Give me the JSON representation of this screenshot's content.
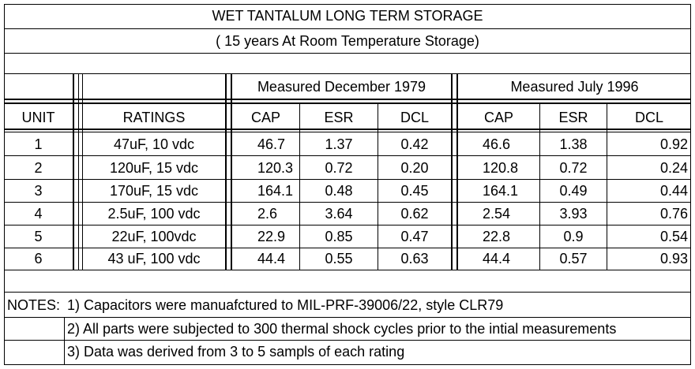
{
  "title": "WET TANTALUM LONG TERM STORAGE",
  "subtitle": "( 15 years At Room Temperature Storage)",
  "group_headers": {
    "first": "Measured December 1979",
    "second": "Measured July 1996"
  },
  "columns": {
    "unit": "UNIT",
    "ratings": "RATINGS",
    "cap1": "CAP",
    "esr1": "ESR",
    "dcl1": "DCL",
    "cap2": "CAP",
    "esr2": "ESR",
    "dcl2": "DCL"
  },
  "rows": [
    {
      "unit": "1",
      "rating": "47uF, 10 vdc",
      "cap1": "46.7",
      "esr1": "1.37",
      "dcl1": "0.42",
      "cap2": "46.6",
      "esr2": "1.38",
      "dcl2": "0.92"
    },
    {
      "unit": "2",
      "rating": "120uF, 15 vdc",
      "cap1": "120.3",
      "esr1": "0.72",
      "dcl1": "0.20",
      "cap2": "120.8",
      "esr2": "0.72",
      "dcl2": "0.24"
    },
    {
      "unit": "3",
      "rating": "170uF, 15 vdc",
      "cap1": "164.1",
      "esr1": "0.48",
      "dcl1": "0.45",
      "cap2": "164.1",
      "esr2": "0.49",
      "dcl2": "0.44"
    },
    {
      "unit": "4",
      "rating": "2.5uF, 100 vdc",
      "cap1": "2.6",
      "esr1": "3.64",
      "dcl1": "0.62",
      "cap2": "2.54",
      "esr2": "3.93",
      "dcl2": "0.76"
    },
    {
      "unit": "5",
      "rating": "22uF, 100vdc",
      "cap1": "22.9",
      "esr1": "0.85",
      "dcl1": "0.47",
      "cap2": "22.8",
      "esr2": "0.9",
      "dcl2": "0.54"
    },
    {
      "unit": "6",
      "rating": "43 uF, 100 vdc",
      "cap1": "44.4",
      "esr1": "0.55",
      "dcl1": "0.63",
      "cap2": "44.4",
      "esr2": "0.57",
      "dcl2": "0.93"
    }
  ],
  "notes": {
    "label": "NOTES:",
    "items": [
      "1) Capacitors were manuafctured to MIL-PRF-39006/22, style CLR79",
      "2) All parts were subjected to 300 thermal shock cycles prior to the intial measurements",
      "3) Data was derived from 3 to 5 sampls of each rating"
    ]
  }
}
